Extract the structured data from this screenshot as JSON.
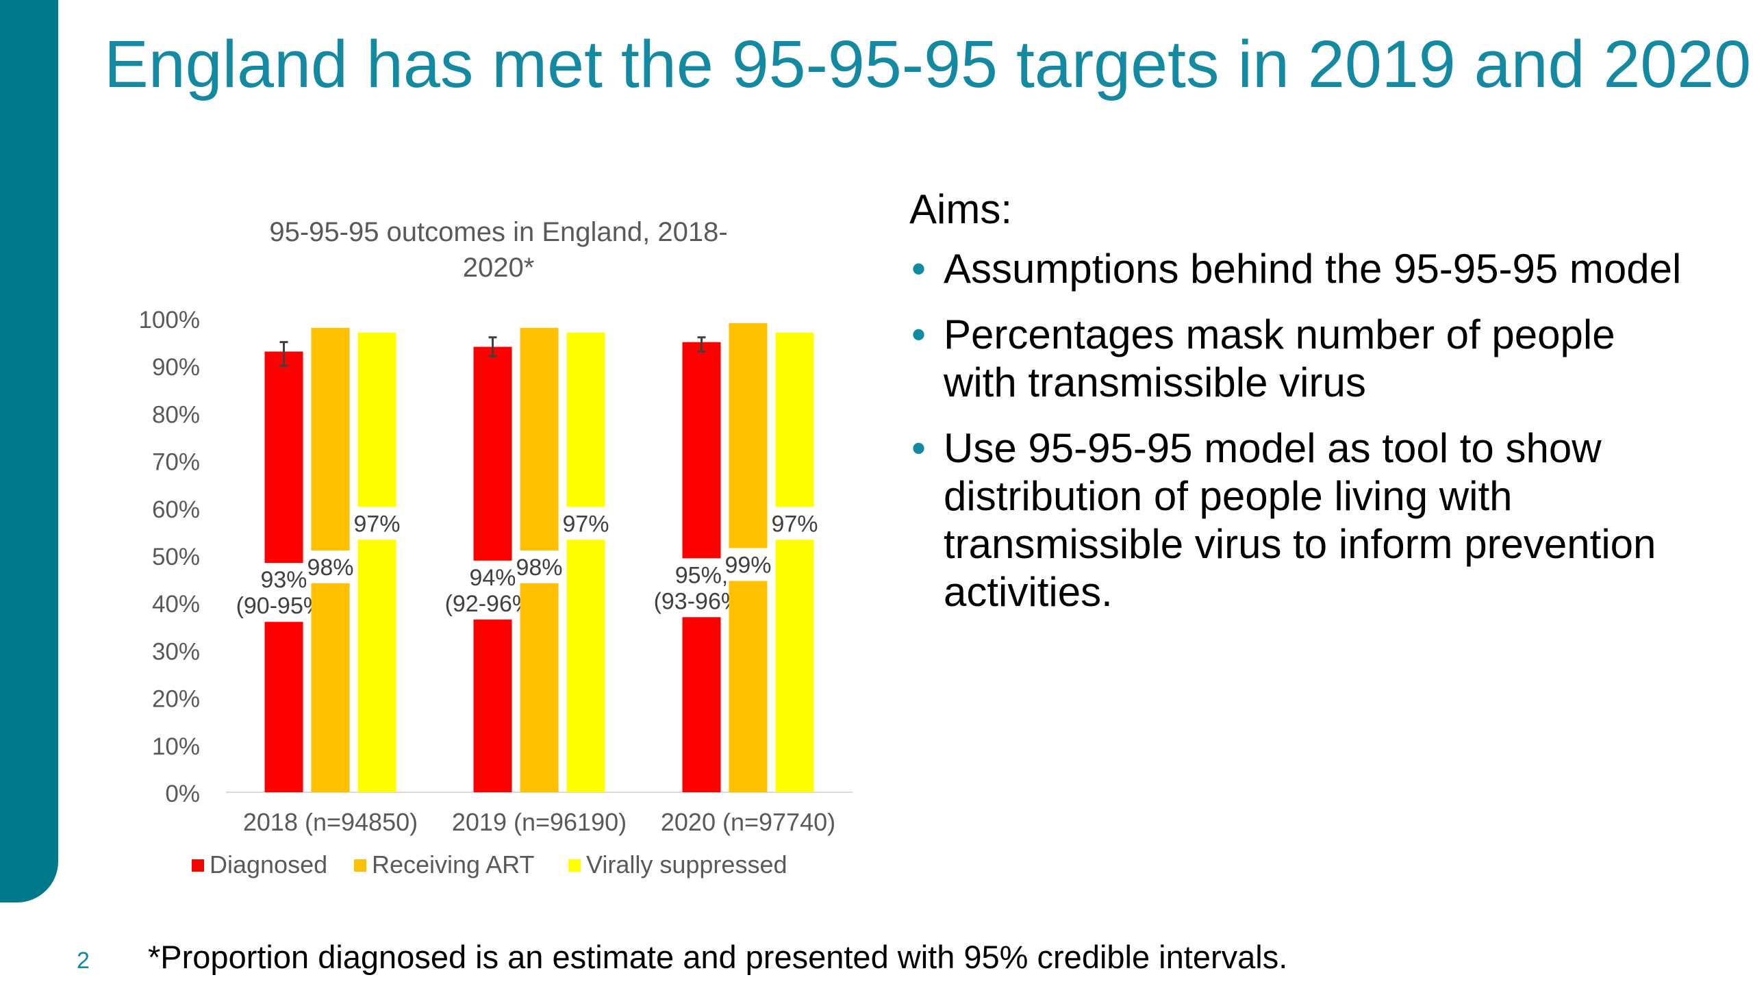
{
  "slide": {
    "title": "England has met the 95-95-95 targets in 2019 and 2020",
    "page_number": "2",
    "footnote": "*Proportion diagnosed is an estimate and presented with 95% credible intervals."
  },
  "aims": {
    "heading": "Aims:",
    "items": [
      "Assumptions behind the 95-95-95 model",
      "Percentages mask number of people with transmissible virus",
      "Use 95-95-95 model as tool to show distribution of people living with transmissible virus to inform prevention activities."
    ]
  },
  "colors": {
    "accent": "#1389A2",
    "sidebar": "#007A8A",
    "diagnosed": "#FF0000",
    "receiving_art": "#FFC000",
    "virally_suppressed": "#FFFF00"
  },
  "chart_data": {
    "type": "bar",
    "title_lines": [
      "95-95-95 outcomes in England, 2018-",
      "2020*"
    ],
    "categories": [
      "2018 (n=94850)",
      "2019 (n=96190)",
      "2020 (n=97740)"
    ],
    "ylim": [
      0,
      100
    ],
    "yticks": [
      "0%",
      "10%",
      "20%",
      "30%",
      "40%",
      "50%",
      "60%",
      "70%",
      "80%",
      "90%",
      "100%"
    ],
    "grid": false,
    "legend_position": "bottom",
    "series": [
      {
        "name": "Diagnosed",
        "color": "#FF0000",
        "values": [
          93,
          94,
          95
        ],
        "error_low": [
          90,
          92,
          93
        ],
        "error_high": [
          95,
          96,
          96
        ],
        "labels": [
          [
            "93%",
            "(90-95%)"
          ],
          [
            "94%",
            "(92-96%)"
          ],
          [
            "95%,",
            "(93-96%)"
          ]
        ]
      },
      {
        "name": "Receiving ART",
        "color": "#FFC000",
        "values": [
          98,
          98,
          99
        ],
        "labels": [
          [
            "98%"
          ],
          [
            "98%"
          ],
          [
            "99%"
          ]
        ]
      },
      {
        "name": "Virally suppressed",
        "color": "#FFFF00",
        "values": [
          97,
          97,
          97
        ],
        "labels": [
          [
            "97%"
          ],
          [
            "97%"
          ],
          [
            "97%"
          ]
        ]
      }
    ]
  }
}
